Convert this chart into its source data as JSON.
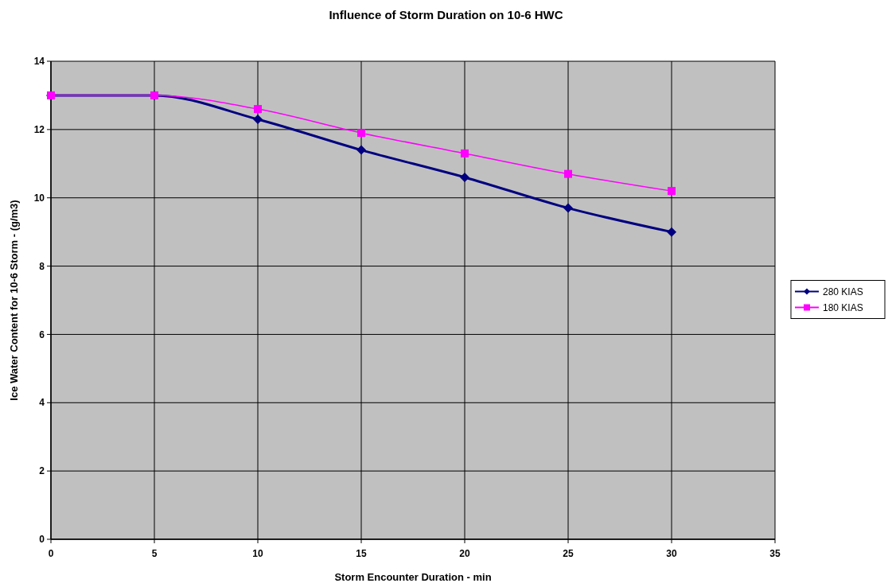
{
  "chart_data": {
    "type": "line",
    "title": "Influence of Storm Duration on 10-6 HWC",
    "xlabel": "Storm Encounter Duration - min",
    "ylabel": "Ice Water Content for 10-6 Storm - (g/m3)",
    "x": [
      0,
      5,
      10,
      15,
      20,
      25,
      30
    ],
    "series": [
      {
        "name": "280 KIAS",
        "color": "#000080",
        "marker": "diamond",
        "values": [
          13,
          13,
          12.3,
          11.4,
          10.6,
          9.7,
          9.0
        ]
      },
      {
        "name": "180 KIAS",
        "color": "#ff00ff",
        "marker": "square",
        "values": [
          13,
          13,
          12.6,
          11.9,
          11.3,
          10.7,
          10.2
        ]
      }
    ],
    "xlim": [
      0,
      35
    ],
    "xticks": [
      0,
      5,
      10,
      15,
      20,
      25,
      30,
      35
    ],
    "ylim": [
      0,
      14
    ],
    "yticks": [
      0,
      2,
      4,
      6,
      8,
      10,
      12,
      14
    ],
    "grid": true,
    "legend": "right"
  }
}
